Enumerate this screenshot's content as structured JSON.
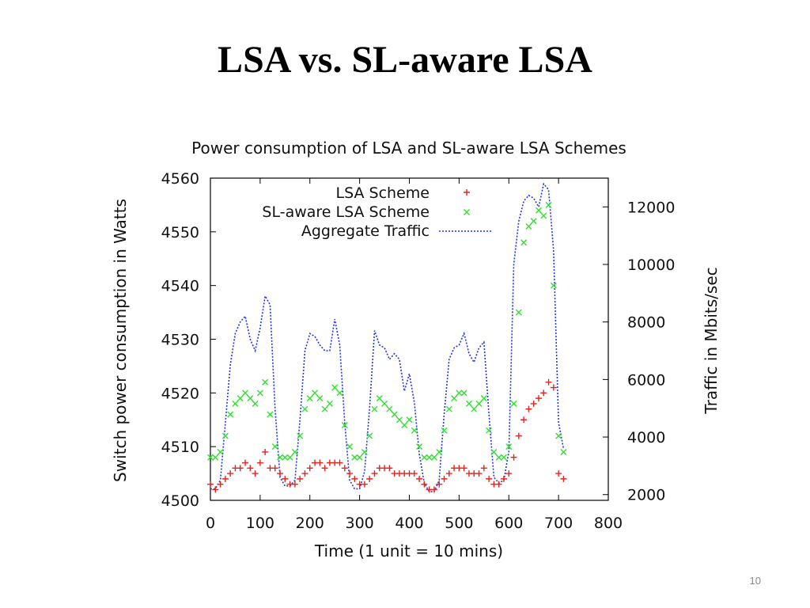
{
  "slide": {
    "title": "LSA vs. SL-aware LSA",
    "page_number": "10"
  },
  "colors": {
    "lsa": "#e8231c",
    "sl_aware": "#2fe02f",
    "traffic": "#2233ee"
  },
  "chart_data": {
    "type": "scatter",
    "title": "Power consumption of LSA and SL-aware LSA Schemes",
    "xlabel": "Time (1 unit = 10 mins)",
    "ylabel": "Switch power consumption in Watts",
    "y2label": "Traffic in Mbits/sec",
    "xlim": [
      0,
      800
    ],
    "ylim": [
      4500,
      4560
    ],
    "y2lim": [
      1800,
      13000
    ],
    "xticks": [
      "0",
      "100",
      "200",
      "300",
      "400",
      "500",
      "600",
      "700",
      "800"
    ],
    "yticks": [
      "4500",
      "4510",
      "4520",
      "4530",
      "4540",
      "4550",
      "4560"
    ],
    "y2ticks": [
      "2000",
      "4000",
      "6000",
      "8000",
      "10000",
      "12000"
    ],
    "legend_position": "top-right",
    "series": [
      {
        "name": "LSA Scheme",
        "axis": "left",
        "marker": "+",
        "x": [
          0,
          10,
          20,
          30,
          40,
          50,
          60,
          70,
          80,
          90,
          100,
          110,
          120,
          130,
          140,
          150,
          160,
          170,
          180,
          190,
          200,
          210,
          220,
          230,
          240,
          250,
          260,
          270,
          280,
          290,
          300,
          310,
          320,
          330,
          340,
          350,
          360,
          370,
          380,
          390,
          400,
          410,
          420,
          430,
          440,
          450,
          460,
          470,
          480,
          490,
          500,
          510,
          520,
          530,
          540,
          550,
          560,
          570,
          580,
          590,
          600,
          610,
          620,
          630,
          640,
          650,
          660,
          670,
          680,
          690,
          700,
          710
        ],
        "y": [
          4503,
          4502,
          4503,
          4504,
          4505,
          4506,
          4506,
          4507,
          4506,
          4505,
          4507,
          4509,
          4506,
          4506,
          4505,
          4504,
          4503,
          4503,
          4504,
          4505,
          4506,
          4507,
          4507,
          4506,
          4507,
          4507,
          4507,
          4506,
          4505,
          4504,
          4503,
          4503,
          4504,
          4505,
          4506,
          4506,
          4506,
          4505,
          4505,
          4505,
          4505,
          4505,
          4504,
          4503,
          4502,
          4502,
          4503,
          4504,
          4505,
          4506,
          4506,
          4506,
          4505,
          4505,
          4505,
          4506,
          4504,
          4503,
          4503,
          4504,
          4505,
          4508,
          4512,
          4515,
          4517,
          4518,
          4519,
          4520,
          4522,
          4521,
          4505,
          4504
        ]
      },
      {
        "name": "SL-aware LSA Scheme",
        "axis": "left",
        "marker": "x",
        "x": [
          0,
          10,
          20,
          30,
          40,
          50,
          60,
          70,
          80,
          90,
          100,
          110,
          120,
          130,
          140,
          150,
          160,
          170,
          180,
          190,
          200,
          210,
          220,
          230,
          240,
          250,
          260,
          270,
          280,
          290,
          300,
          310,
          320,
          330,
          340,
          350,
          360,
          370,
          380,
          390,
          400,
          410,
          420,
          430,
          440,
          450,
          460,
          470,
          480,
          490,
          500,
          510,
          520,
          530,
          540,
          550,
          560,
          570,
          580,
          590,
          600,
          610,
          620,
          630,
          640,
          650,
          660,
          670,
          680,
          690,
          700,
          710
        ],
        "y": [
          4508,
          4508,
          4509,
          4512,
          4516,
          4518,
          4519,
          4520,
          4519,
          4518,
          4520,
          4522,
          4516,
          4510,
          4508,
          4508,
          4508,
          4509,
          4512,
          4517,
          4519,
          4520,
          4519,
          4517,
          4518,
          4521,
          4520,
          4514,
          4510,
          4508,
          4508,
          4509,
          4512,
          4517,
          4519,
          4518,
          4517,
          4516,
          4515,
          4514,
          4515,
          4513,
          4510,
          4508,
          4508,
          4508,
          4509,
          4513,
          4517,
          4519,
          4520,
          4520,
          4518,
          4517,
          4518,
          4519,
          4513,
          4509,
          4508,
          4508,
          4510,
          4518,
          4535,
          4548,
          4551,
          4552,
          4554,
          4553,
          4555,
          4540,
          4512,
          4509
        ]
      },
      {
        "name": "Aggregate Traffic",
        "axis": "right",
        "marker": "dotted-line",
        "x": [
          0,
          10,
          20,
          30,
          40,
          50,
          60,
          70,
          80,
          90,
          100,
          110,
          120,
          130,
          140,
          150,
          160,
          170,
          180,
          190,
          200,
          210,
          220,
          230,
          240,
          250,
          260,
          270,
          280,
          290,
          300,
          310,
          320,
          330,
          340,
          350,
          360,
          370,
          380,
          390,
          400,
          410,
          420,
          430,
          440,
          450,
          460,
          470,
          480,
          490,
          500,
          510,
          520,
          530,
          540,
          550,
          560,
          570,
          580,
          590,
          600,
          610,
          620,
          630,
          640,
          650,
          660,
          670,
          680,
          690,
          700,
          710
        ],
        "y": [
          2200,
          2200,
          2500,
          4500,
          6500,
          7600,
          8000,
          8200,
          7400,
          7000,
          7800,
          8900,
          8600,
          5000,
          2600,
          2300,
          2300,
          2500,
          4600,
          7000,
          7600,
          7500,
          7200,
          7000,
          7000,
          8100,
          7200,
          4500,
          2500,
          2200,
          2200,
          2800,
          5000,
          7700,
          7200,
          7100,
          6700,
          6900,
          6700,
          5600,
          6200,
          5200,
          3400,
          2400,
          2100,
          2100,
          2500,
          4800,
          6700,
          7100,
          7200,
          7600,
          6900,
          6600,
          7100,
          7300,
          4800,
          2600,
          2400,
          2500,
          3500,
          10000,
          11500,
          12200,
          12400,
          12300,
          12000,
          12800,
          12600,
          10500,
          4500,
          3600
        ]
      }
    ]
  }
}
